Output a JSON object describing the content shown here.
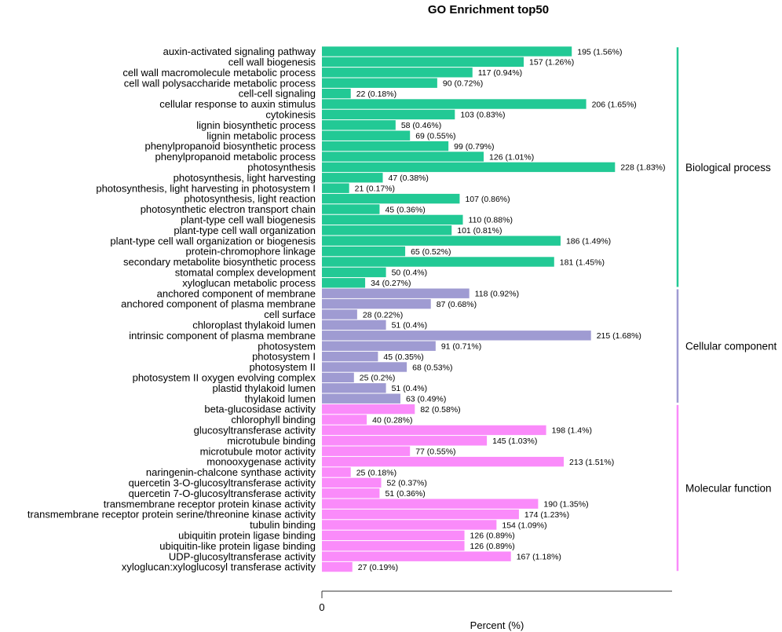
{
  "chart_data": {
    "type": "bar",
    "orientation": "horizontal",
    "title": "GO Enrichment top50",
    "xlabel": "Percent (%)",
    "ylabel": "",
    "x_ticks": [
      "0"
    ],
    "xlim": [
      0,
      2.0
    ],
    "colors": {
      "Biological process": "#22c995",
      "Cellular component": "#9f9bd2",
      "Molecular function": "#fa8bfa"
    },
    "groups": [
      {
        "name": "Biological process",
        "items": [
          {
            "term": "auxin-activated signaling pathway",
            "count": 195,
            "percent": 1.56,
            "label": "195 (1.56%)"
          },
          {
            "term": "cell wall biogenesis",
            "count": 157,
            "percent": 1.26,
            "label": "157 (1.26%)"
          },
          {
            "term": "cell wall macromolecule metabolic process",
            "count": 117,
            "percent": 0.94,
            "label": "117 (0.94%)"
          },
          {
            "term": "cell wall polysaccharide metabolic process",
            "count": 90,
            "percent": 0.72,
            "label": "90 (0.72%)"
          },
          {
            "term": "cell-cell signaling",
            "count": 22,
            "percent": 0.18,
            "label": "22 (0.18%)"
          },
          {
            "term": "cellular response to auxin stimulus",
            "count": 206,
            "percent": 1.65,
            "label": "206 (1.65%)"
          },
          {
            "term": "cytokinesis",
            "count": 103,
            "percent": 0.83,
            "label": "103 (0.83%)"
          },
          {
            "term": "lignin biosynthetic process",
            "count": 58,
            "percent": 0.46,
            "label": "58 (0.46%)"
          },
          {
            "term": "lignin metabolic process",
            "count": 69,
            "percent": 0.55,
            "label": "69 (0.55%)"
          },
          {
            "term": "phenylpropanoid biosynthetic process",
            "count": 99,
            "percent": 0.79,
            "label": "99 (0.79%)"
          },
          {
            "term": "phenylpropanoid metabolic process",
            "count": 126,
            "percent": 1.01,
            "label": "126 (1.01%)"
          },
          {
            "term": "photosynthesis",
            "count": 228,
            "percent": 1.83,
            "label": "228 (1.83%)"
          },
          {
            "term": "photosynthesis, light harvesting",
            "count": 47,
            "percent": 0.38,
            "label": "47 (0.38%)"
          },
          {
            "term": "photosynthesis, light harvesting in photosystem I",
            "count": 21,
            "percent": 0.17,
            "label": "21 (0.17%)"
          },
          {
            "term": "photosynthesis, light reaction",
            "count": 107,
            "percent": 0.86,
            "label": "107 (0.86%)"
          },
          {
            "term": "photosynthetic electron transport chain",
            "count": 45,
            "percent": 0.36,
            "label": "45 (0.36%)"
          },
          {
            "term": "plant-type cell wall biogenesis",
            "count": 110,
            "percent": 0.88,
            "label": "110 (0.88%)"
          },
          {
            "term": "plant-type cell wall organization",
            "count": 101,
            "percent": 0.81,
            "label": "101 (0.81%)"
          },
          {
            "term": "plant-type cell wall organization or biogenesis",
            "count": 186,
            "percent": 1.49,
            "label": "186 (1.49%)"
          },
          {
            "term": "protein-chromophore linkage",
            "count": 65,
            "percent": 0.52,
            "label": "65 (0.52%)"
          },
          {
            "term": "secondary metabolite biosynthetic process",
            "count": 181,
            "percent": 1.45,
            "label": "181 (1.45%)"
          },
          {
            "term": "stomatal complex development",
            "count": 50,
            "percent": 0.4,
            "label": "50 (0.4%)"
          },
          {
            "term": "xyloglucan metabolic process",
            "count": 34,
            "percent": 0.27,
            "label": "34 (0.27%)"
          }
        ]
      },
      {
        "name": "Cellular component",
        "items": [
          {
            "term": "anchored component of membrane",
            "count": 118,
            "percent": 0.92,
            "label": "118 (0.92%)"
          },
          {
            "term": "anchored component of plasma membrane",
            "count": 87,
            "percent": 0.68,
            "label": "87 (0.68%)"
          },
          {
            "term": "cell surface",
            "count": 28,
            "percent": 0.22,
            "label": "28 (0.22%)"
          },
          {
            "term": "chloroplast thylakoid lumen",
            "count": 51,
            "percent": 0.4,
            "label": "51 (0.4%)"
          },
          {
            "term": "intrinsic component of plasma membrane",
            "count": 215,
            "percent": 1.68,
            "label": "215 (1.68%)"
          },
          {
            "term": "photosystem",
            "count": 91,
            "percent": 0.71,
            "label": "91 (0.71%)"
          },
          {
            "term": "photosystem I",
            "count": 45,
            "percent": 0.35,
            "label": "45 (0.35%)"
          },
          {
            "term": "photosystem II",
            "count": 68,
            "percent": 0.53,
            "label": "68 (0.53%)"
          },
          {
            "term": "photosystem II oxygen evolving complex",
            "count": 25,
            "percent": 0.2,
            "label": "25 (0.2%)"
          },
          {
            "term": "plastid thylakoid lumen",
            "count": 51,
            "percent": 0.4,
            "label": "51 (0.4%)"
          },
          {
            "term": "thylakoid lumen",
            "count": 63,
            "percent": 0.49,
            "label": "63 (0.49%)"
          }
        ]
      },
      {
        "name": "Molecular function",
        "items": [
          {
            "term": "beta-glucosidase activity",
            "count": 82,
            "percent": 0.58,
            "label": "82 (0.58%)"
          },
          {
            "term": "chlorophyll binding",
            "count": 40,
            "percent": 0.28,
            "label": "40 (0.28%)"
          },
          {
            "term": "glucosyltransferase activity",
            "count": 198,
            "percent": 1.4,
            "label": "198 (1.4%)"
          },
          {
            "term": "microtubule binding",
            "count": 145,
            "percent": 1.03,
            "label": "145 (1.03%)"
          },
          {
            "term": "microtubule motor activity",
            "count": 77,
            "percent": 0.55,
            "label": "77 (0.55%)"
          },
          {
            "term": "monooxygenase activity",
            "count": 213,
            "percent": 1.51,
            "label": "213 (1.51%)"
          },
          {
            "term": "naringenin-chalcone synthase activity",
            "count": 25,
            "percent": 0.18,
            "label": "25 (0.18%)"
          },
          {
            "term": "quercetin 3-O-glucosyltransferase activity",
            "count": 52,
            "percent": 0.37,
            "label": "52 (0.37%)"
          },
          {
            "term": "quercetin 7-O-glucosyltransferase activity",
            "count": 51,
            "percent": 0.36,
            "label": "51 (0.36%)"
          },
          {
            "term": "transmembrane receptor protein kinase activity",
            "count": 190,
            "percent": 1.35,
            "label": "190 (1.35%)"
          },
          {
            "term": "transmembrane receptor protein serine/threonine kinase activity",
            "count": 174,
            "percent": 1.23,
            "label": "174 (1.23%)"
          },
          {
            "term": "tubulin binding",
            "count": 154,
            "percent": 1.09,
            "label": "154 (1.09%)"
          },
          {
            "term": "ubiquitin protein ligase binding",
            "count": 126,
            "percent": 0.89,
            "label": "126 (0.89%)"
          },
          {
            "term": "ubiquitin-like protein ligase binding",
            "count": 126,
            "percent": 0.89,
            "label": "126 (0.89%)"
          },
          {
            "term": "UDP-glucosyltransferase activity",
            "count": 167,
            "percent": 1.18,
            "label": "167 (1.18%)"
          },
          {
            "term": "xyloglucan:xyloglucosyl transferase activity",
            "count": 27,
            "percent": 0.19,
            "label": "27 (0.19%)"
          }
        ]
      }
    ]
  }
}
